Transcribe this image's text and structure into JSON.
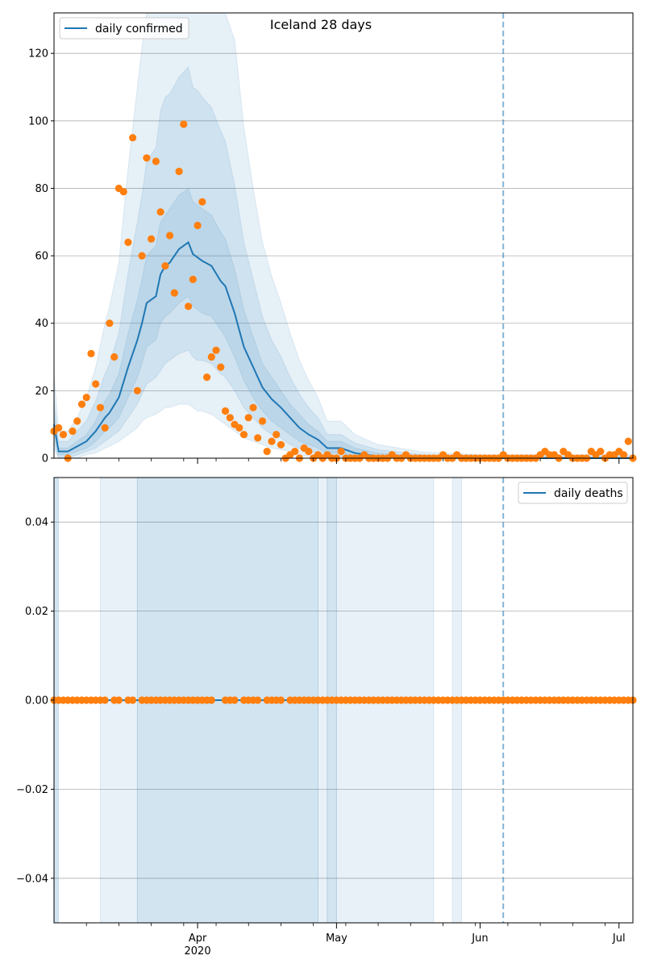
{
  "colors": {
    "line": "#1f77b4",
    "band": "#1f77b4",
    "points": "#ff7f0e",
    "grid": "#b0b0b0",
    "vline": "#1f77b4"
  },
  "chart_data": [
    {
      "type": "line",
      "title": "Iceland 28 days",
      "legend": {
        "label": "daily confirmed",
        "placement": "top-left"
      },
      "ylim": [
        0,
        132
      ],
      "yticks": [
        0,
        20,
        40,
        60,
        80,
        100,
        120
      ],
      "ytick_labels": [
        "0",
        "20",
        "40",
        "60",
        "80",
        "100",
        "120"
      ],
      "xlim": [
        "2020-03-01",
        "2020-07-04"
      ],
      "grid": "y",
      "vline": "2020-06-06",
      "model": {
        "name": "daily confirmed",
        "x": [
          "2020-03-01",
          "2020-03-02",
          "2020-03-04",
          "2020-03-06",
          "2020-03-08",
          "2020-03-10",
          "2020-03-12",
          "2020-03-13",
          "2020-03-15",
          "2020-03-17",
          "2020-03-19",
          "2020-03-20",
          "2020-03-21",
          "2020-03-23",
          "2020-03-24",
          "2020-03-25",
          "2020-03-26",
          "2020-03-28",
          "2020-03-30",
          "2020-03-31",
          "2020-04-01",
          "2020-04-02",
          "2020-04-04",
          "2020-04-06",
          "2020-04-07",
          "2020-04-09",
          "2020-04-11",
          "2020-04-13",
          "2020-04-15",
          "2020-04-17",
          "2020-04-19",
          "2020-04-21",
          "2020-04-23",
          "2020-04-25",
          "2020-04-27",
          "2020-04-29",
          "2020-05-02",
          "2020-05-05",
          "2020-05-10",
          "2020-05-20",
          "2020-06-01",
          "2020-06-15",
          "2020-07-04"
        ],
        "y": [
          10,
          2,
          2,
          3.5,
          5,
          8,
          12,
          13.5,
          18,
          27,
          35,
          40,
          46,
          48,
          54.5,
          57,
          58,
          62,
          64,
          60.5,
          59.5,
          58.5,
          57,
          52.5,
          51,
          43,
          33,
          27,
          21,
          17.5,
          15,
          12,
          9,
          7,
          5.5,
          3,
          3,
          1.5,
          0.5,
          0.1,
          0,
          0,
          0
        ]
      },
      "bands": [
        {
          "name": "band-inner",
          "lower": [
            8,
            1,
            1,
            2,
            3,
            5,
            8,
            9,
            12,
            18,
            24,
            28,
            33,
            35,
            40,
            42,
            43,
            46,
            48,
            45,
            44,
            43,
            42,
            38,
            36,
            30,
            23,
            18,
            14,
            11,
            9,
            7,
            5,
            4,
            3,
            1.5,
            1.5,
            0.8,
            0.2,
            0,
            0,
            0,
            0
          ],
          "upper": [
            13,
            3,
            3,
            5,
            7,
            11,
            17,
            19,
            25,
            37,
            47,
            53,
            60,
            63,
            70,
            72,
            74,
            78,
            80,
            76,
            75,
            74,
            72,
            67,
            65,
            56,
            44,
            36,
            28,
            24,
            20,
            16,
            13,
            10,
            8,
            5,
            5,
            3,
            1.5,
            0.5,
            0.3,
            0.3,
            0.3
          ]
        },
        {
          "name": "band-middle",
          "lower": [
            5,
            0,
            0,
            1,
            2,
            3,
            5,
            6,
            8,
            12,
            16,
            19,
            22,
            24,
            26,
            28,
            29,
            31,
            32,
            30,
            29,
            29,
            28,
            25,
            24,
            20,
            15,
            12,
            9,
            7,
            6,
            4,
            3,
            2,
            1.5,
            0.5,
            0.5,
            0.2,
            0,
            0,
            0,
            0,
            0
          ],
          "upper": [
            17,
            5,
            5,
            8,
            11,
            17,
            25,
            28,
            37,
            55,
            70,
            78,
            88,
            92,
            103,
            107,
            108,
            113,
            116,
            110,
            109,
            107,
            104,
            97,
            94,
            81,
            64,
            53,
            42,
            35,
            30,
            24,
            19,
            15,
            12,
            7,
            7,
            4.5,
            2.5,
            1,
            0.6,
            0.6,
            0.6
          ]
        },
        {
          "name": "band-outer",
          "lower": [
            3,
            0,
            0,
            0,
            1,
            1.5,
            3,
            3.5,
            5,
            7,
            9,
            11,
            12,
            13,
            14,
            15,
            15,
            16,
            16,
            15,
            14,
            14,
            13,
            11,
            10,
            8,
            6,
            5,
            4,
            3,
            2.5,
            2,
            1,
            0.5,
            0.3,
            0,
            0,
            0,
            0,
            0,
            0,
            0,
            0
          ],
          "upper": [
            25,
            8,
            8,
            12,
            18,
            27,
            40,
            45,
            58,
            86,
            110,
            122,
            140,
            145,
            160,
            165,
            168,
            172,
            175,
            168,
            166,
            163,
            158,
            148,
            143,
            124,
            98,
            80,
            64,
            54,
            46,
            37,
            29,
            23,
            18,
            11,
            11,
            7,
            4,
            1.8,
            1,
            1,
            1
          ]
        }
      ],
      "observed": {
        "dates": [
          "2020-03-01",
          "2020-03-02",
          "2020-03-03",
          "2020-03-04",
          "2020-03-05",
          "2020-03-06",
          "2020-03-07",
          "2020-03-08",
          "2020-03-09",
          "2020-03-10",
          "2020-03-11",
          "2020-03-12",
          "2020-03-13",
          "2020-03-14",
          "2020-03-15",
          "2020-03-16",
          "2020-03-17",
          "2020-03-18",
          "2020-03-19",
          "2020-03-20",
          "2020-03-21",
          "2020-03-22",
          "2020-03-23",
          "2020-03-24",
          "2020-03-25",
          "2020-03-26",
          "2020-03-27",
          "2020-03-28",
          "2020-03-29",
          "2020-03-30",
          "2020-03-31",
          "2020-04-01",
          "2020-04-02",
          "2020-04-03",
          "2020-04-04",
          "2020-04-05",
          "2020-04-06",
          "2020-04-07",
          "2020-04-08",
          "2020-04-09",
          "2020-04-10",
          "2020-04-11",
          "2020-04-12",
          "2020-04-13",
          "2020-04-14",
          "2020-04-15",
          "2020-04-16",
          "2020-04-17",
          "2020-04-18",
          "2020-04-19",
          "2020-04-20",
          "2020-04-21",
          "2020-04-22",
          "2020-04-23",
          "2020-04-24",
          "2020-04-25",
          "2020-04-26",
          "2020-04-27",
          "2020-04-28",
          "2020-04-29",
          "2020-04-30",
          "2020-05-01",
          "2020-05-02",
          "2020-05-03",
          "2020-05-04",
          "2020-05-05",
          "2020-05-06",
          "2020-05-07",
          "2020-05-08",
          "2020-05-09",
          "2020-05-10",
          "2020-05-11",
          "2020-05-12",
          "2020-05-13",
          "2020-05-14",
          "2020-05-15",
          "2020-05-16",
          "2020-05-17",
          "2020-05-18",
          "2020-05-19",
          "2020-05-20",
          "2020-05-21",
          "2020-05-22",
          "2020-05-23",
          "2020-05-24",
          "2020-05-25",
          "2020-05-26",
          "2020-05-27",
          "2020-05-28",
          "2020-05-29",
          "2020-05-30",
          "2020-05-31",
          "2020-06-01",
          "2020-06-02",
          "2020-06-03",
          "2020-06-04",
          "2020-06-05",
          "2020-06-06",
          "2020-06-07",
          "2020-06-08",
          "2020-06-09",
          "2020-06-10",
          "2020-06-11",
          "2020-06-12",
          "2020-06-13",
          "2020-06-14",
          "2020-06-15",
          "2020-06-16",
          "2020-06-17",
          "2020-06-18",
          "2020-06-19",
          "2020-06-20",
          "2020-06-21",
          "2020-06-22",
          "2020-06-23",
          "2020-06-24",
          "2020-06-25",
          "2020-06-26",
          "2020-06-27",
          "2020-06-28",
          "2020-06-29",
          "2020-06-30",
          "2020-07-01",
          "2020-07-02",
          "2020-07-03",
          "2020-07-04"
        ],
        "values": [
          8,
          9,
          7,
          0,
          8,
          11,
          16,
          18,
          31,
          22,
          15,
          9,
          40,
          30,
          80,
          79,
          64,
          95,
          20,
          60,
          89,
          65,
          88,
          73,
          57,
          66,
          49,
          85,
          99,
          45,
          53,
          69,
          76,
          24,
          30,
          32,
          27,
          14,
          12,
          10,
          9,
          7,
          12,
          15,
          6,
          11,
          2,
          5,
          7,
          4,
          0,
          1,
          2,
          0,
          3,
          2,
          0,
          1,
          0,
          1,
          0,
          0,
          2,
          0,
          0,
          0,
          0,
          1,
          0,
          0,
          0,
          0,
          0,
          1,
          0,
          0,
          1,
          0,
          0,
          0,
          0,
          0,
          0,
          0,
          1,
          0,
          0,
          1,
          0,
          0,
          0,
          0,
          0,
          0,
          0,
          0,
          0,
          1,
          0,
          0,
          0,
          0,
          0,
          0,
          0,
          1,
          2,
          1,
          1,
          0,
          2,
          1,
          0,
          0,
          0,
          0,
          2,
          1,
          2,
          0,
          1,
          1,
          2,
          1,
          5,
          0
        ]
      }
    },
    {
      "type": "line",
      "title": "",
      "legend": {
        "label": "daily deaths",
        "placement": "top-right"
      },
      "ylim": [
        -0.05,
        0.05
      ],
      "yticks": [
        -0.04,
        -0.02,
        0.0,
        0.02,
        0.04
      ],
      "ytick_labels": [
        "−0.04",
        "−0.02",
        "0.00",
        "0.02",
        "0.04"
      ],
      "xlim": [
        "2020-03-01",
        "2020-07-04"
      ],
      "grid": "y",
      "vline": "2020-06-06",
      "xticks": [
        {
          "date": "2020-04-01",
          "label": "Apr",
          "sublabel": "2020"
        },
        {
          "date": "2020-05-01",
          "label": "May",
          "sublabel": ""
        },
        {
          "date": "2020-06-01",
          "label": "Jun",
          "sublabel": ""
        },
        {
          "date": "2020-07-01",
          "label": "Jul",
          "sublabel": ""
        }
      ],
      "minor_ticks": [
        "2020-03-08",
        "2020-03-15",
        "2020-03-22",
        "2020-03-29",
        "2020-04-05",
        "2020-04-12",
        "2020-04-19",
        "2020-04-26",
        "2020-05-03",
        "2020-05-10",
        "2020-05-17",
        "2020-05-24",
        "2020-05-31",
        "2020-06-07",
        "2020-06-14",
        "2020-06-21",
        "2020-06-28"
      ],
      "model": {
        "name": "daily deaths",
        "x": [
          "2020-03-01",
          "2020-07-04"
        ],
        "y": [
          0,
          0
        ]
      },
      "band_intervals": [
        {
          "start": "2020-03-01",
          "end": "2020-03-02",
          "level": "dark"
        },
        {
          "start": "2020-03-11",
          "end": "2020-03-19",
          "level": "light"
        },
        {
          "start": "2020-03-19",
          "end": "2020-04-27",
          "level": "dark"
        },
        {
          "start": "2020-04-27",
          "end": "2020-04-29",
          "level": "light"
        },
        {
          "start": "2020-04-29",
          "end": "2020-05-01",
          "level": "dark"
        },
        {
          "start": "2020-05-01",
          "end": "2020-05-22",
          "level": "light"
        },
        {
          "start": "2020-05-26",
          "end": "2020-05-28",
          "level": "light"
        }
      ],
      "observed_gaps": [
        "2020-03-13",
        "2020-03-16",
        "2020-03-19",
        "2020-04-05",
        "2020-04-06",
        "2020-04-10",
        "2020-04-15",
        "2020-04-20"
      ],
      "observed_value": 0
    }
  ]
}
